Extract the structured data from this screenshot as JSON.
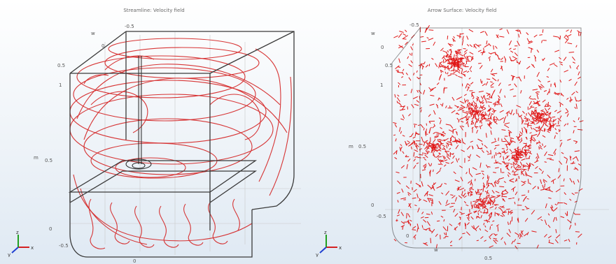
{
  "left_plot": {
    "title": "Streamline: Velocity field",
    "ticks": [
      "-0.5",
      "w",
      "0",
      "0.5",
      "1",
      "m",
      "0.5",
      "0",
      "-0.5",
      "0"
    ]
  },
  "right_plot": {
    "title": "Arrow Surface: Velocity field",
    "ticks": [
      "-0.5",
      "w",
      "0",
      "0.5",
      "1",
      "m",
      "0.5",
      "0",
      "-0.5",
      "0",
      "w",
      "0.5"
    ]
  },
  "axis_triad": {
    "x": "x",
    "y": "y",
    "z": "z"
  },
  "colors": {
    "frame": "#3a3a3a",
    "streamline": "#d42020",
    "arrow": "#e01818",
    "axis_x": "#d42020",
    "axis_y": "#20a020",
    "axis_z": "#2040d0"
  }
}
